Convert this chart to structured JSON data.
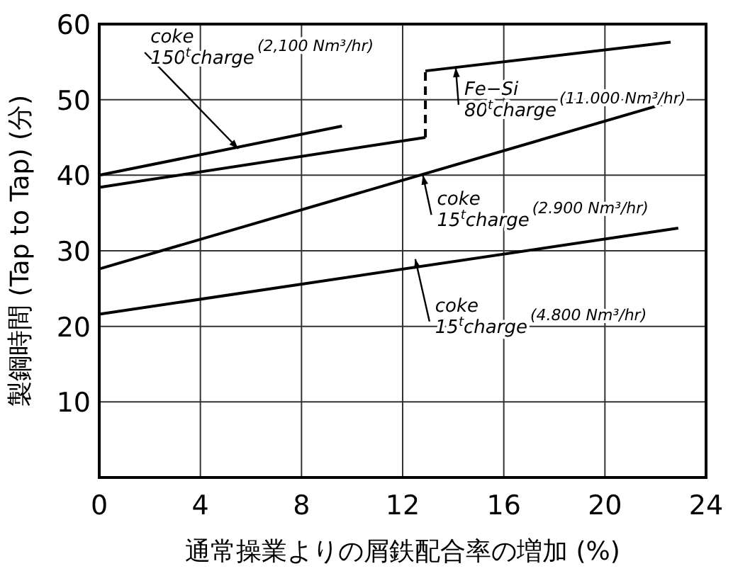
{
  "chart_data": {
    "type": "line",
    "xlabel": "通常操業よりの屑鉄配合率の増加 (%)",
    "ylabel": "製鋼時間 (Tap to Tap) (分)",
    "xlim": [
      0,
      24
    ],
    "ylim": [
      0,
      60
    ],
    "xticks": [
      0,
      4,
      8,
      12,
      16,
      20,
      24
    ],
    "yticks": [
      {
        "value": 0,
        "label": null
      },
      10,
      20,
      30,
      40,
      50,
      60
    ],
    "grid": true,
    "marker": "none",
    "series": [
      {
        "color": "#000000",
        "x": [
          0,
          9.6
        ],
        "values": [
          40,
          46.5
        ]
      },
      {
        "color": "#000000",
        "x": [
          0,
          12.9
        ],
        "values": [
          38.4,
          45.0
        ]
      },
      {
        "color": "#000000",
        "x": [
          12.9,
          12.9
        ],
        "values": [
          45.0,
          53.8
        ],
        "line_style": "dashed"
      },
      {
        "color": "#000000",
        "x": [
          12.9,
          22.6
        ],
        "values": [
          53.8,
          57.6
        ]
      },
      {
        "color": "#000000",
        "x": [
          0,
          22.6
        ],
        "values": [
          27.6,
          49.7
        ]
      },
      {
        "color": "#000000",
        "x": [
          0,
          22.9
        ],
        "values": [
          21.6,
          33.0
        ]
      }
    ],
    "annotations": [
      {
        "text": "coke\n150$^{t}$charge\n(2,100 Nm³/hr)",
        "x": 5.5,
        "y": 43.5
      },
      {
        "text": "Fe−Si\n80$^{t}$charge\n(11.000 Nm³/hr)",
        "x": 14.1,
        "y": 54.2
      },
      {
        "text": "coke\n15$^{t}$charge\n(2.900 Nm³/hr)",
        "x": 12.8,
        "y": 40
      },
      {
        "text": "coke\n15$^{t}$charge\n(4.800 Nm³/hr)",
        "x": 12.5,
        "y": 28.9
      }
    ]
  }
}
